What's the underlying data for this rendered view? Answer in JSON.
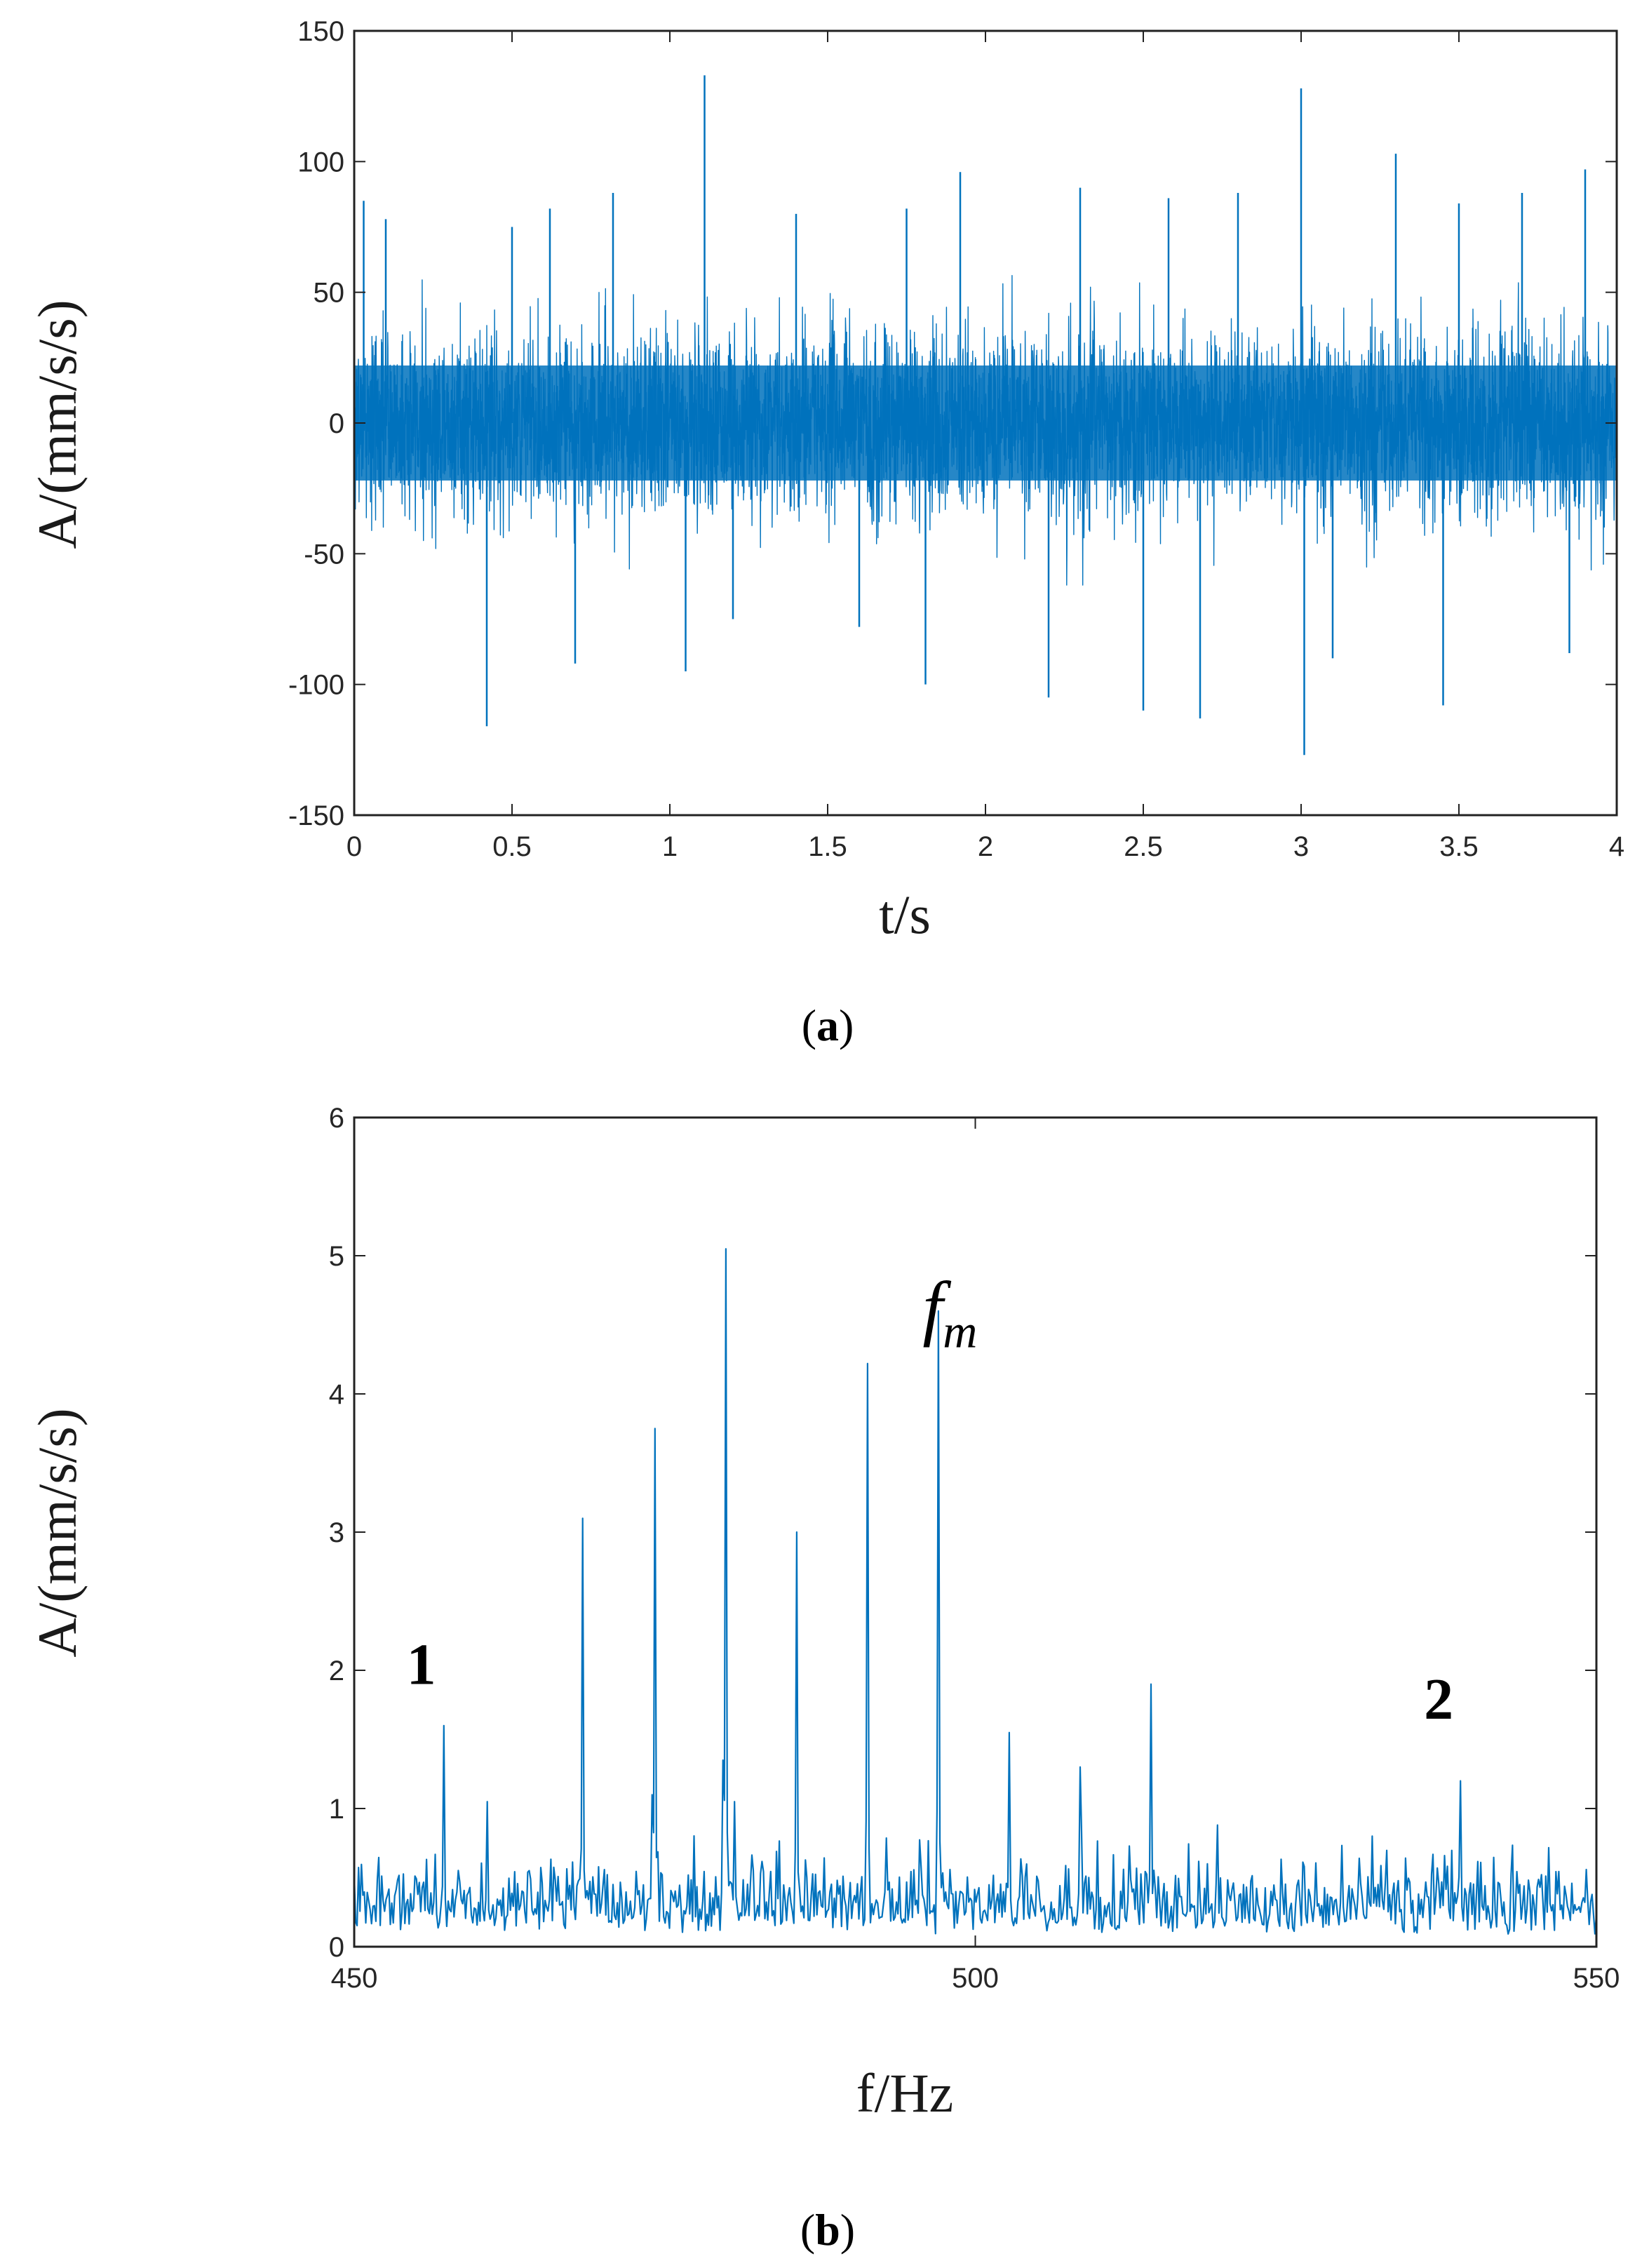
{
  "chart_data": [
    {
      "type": "line",
      "panel_label": "a",
      "xlabel": "t/s",
      "ylabel": "A/(mm/s/s)",
      "xlim": [
        0,
        4
      ],
      "ylim": [
        -150,
        150
      ],
      "xticks": [
        "0",
        "0.5",
        "1",
        "1.5",
        "2",
        "2.5",
        "3",
        "3.5",
        "4"
      ],
      "yticks": [
        "150",
        "100",
        "50",
        "0",
        "-50",
        "-100",
        "-150"
      ],
      "grid": false,
      "color": "#0072BD",
      "signal": "dense random vibration, envelope roughly ±40 to ±60 around 0",
      "spikes": [
        {
          "x": 0.03,
          "y": 85
        },
        {
          "x": 0.1,
          "y": 78
        },
        {
          "x": 0.42,
          "y": -116
        },
        {
          "x": 0.5,
          "y": 75
        },
        {
          "x": 0.62,
          "y": 82
        },
        {
          "x": 0.7,
          "y": -92
        },
        {
          "x": 0.82,
          "y": 88
        },
        {
          "x": 1.05,
          "y": -95
        },
        {
          "x": 1.11,
          "y": 133
        },
        {
          "x": 1.2,
          "y": -75
        },
        {
          "x": 1.4,
          "y": 80
        },
        {
          "x": 1.6,
          "y": -78
        },
        {
          "x": 1.75,
          "y": 82
        },
        {
          "x": 1.81,
          "y": -100
        },
        {
          "x": 1.92,
          "y": 96
        },
        {
          "x": 2.2,
          "y": -105
        },
        {
          "x": 2.3,
          "y": 90
        },
        {
          "x": 2.5,
          "y": -110
        },
        {
          "x": 2.58,
          "y": 86
        },
        {
          "x": 2.68,
          "y": -113
        },
        {
          "x": 2.8,
          "y": 88
        },
        {
          "x": 3.0,
          "y": 128
        },
        {
          "x": 3.01,
          "y": -127
        },
        {
          "x": 3.1,
          "y": -90
        },
        {
          "x": 3.3,
          "y": 103
        },
        {
          "x": 3.5,
          "y": 84
        },
        {
          "x": 3.45,
          "y": -108
        },
        {
          "x": 3.7,
          "y": 88
        },
        {
          "x": 3.85,
          "y": -88
        },
        {
          "x": 3.9,
          "y": 97
        }
      ]
    },
    {
      "type": "line",
      "panel_label": "b",
      "xlabel": "f/Hz",
      "ylabel": "A/(mm/s/s)",
      "xlim": [
        450,
        550
      ],
      "ylim": [
        0,
        6
      ],
      "xticks": [
        "450",
        "500",
        "550"
      ],
      "yticks": [
        "0",
        "1",
        "2",
        "3",
        "4",
        "5",
        "6"
      ],
      "grid": false,
      "color": "#0072BD",
      "noise_floor": "about 0.1 to 0.7",
      "peaks": [
        {
          "x": 457.2,
          "y": 1.6
        },
        {
          "x": 460.7,
          "y": 1.05
        },
        {
          "x": 468.4,
          "y": 3.1
        },
        {
          "x": 474.2,
          "y": 3.75
        },
        {
          "x": 474.0,
          "y": 1.1
        },
        {
          "x": 479.9,
          "y": 5.05
        },
        {
          "x": 479.7,
          "y": 1.35
        },
        {
          "x": 480.6,
          "y": 1.05
        },
        {
          "x": 485.6,
          "y": 3.0
        },
        {
          "x": 491.3,
          "y": 4.22
        },
        {
          "x": 497.0,
          "y": 4.6
        },
        {
          "x": 502.7,
          "y": 1.55
        },
        {
          "x": 508.4,
          "y": 1.3
        },
        {
          "x": 514.2,
          "y": 1.9
        },
        {
          "x": 519.5,
          "y": 0.88
        },
        {
          "x": 532.0,
          "y": 0.8
        },
        {
          "x": 539.0,
          "y": 1.2
        }
      ],
      "annotations": [
        {
          "text": "1",
          "x": 455.4,
          "y": 1.9
        },
        {
          "text": "2",
          "x": 537.3,
          "y": 1.65
        },
        {
          "text": "f",
          "sub": "m",
          "x": 497.0,
          "y": 4.45
        }
      ]
    }
  ]
}
